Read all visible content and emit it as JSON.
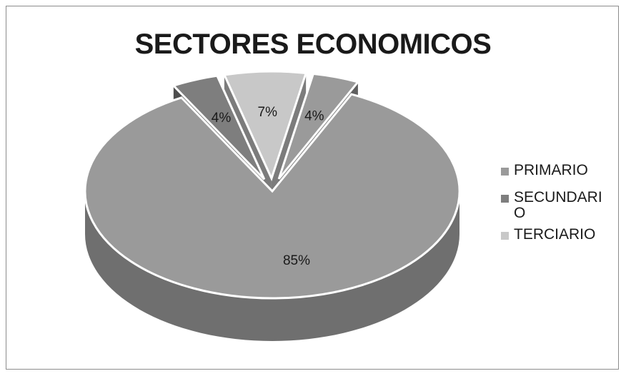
{
  "chart_data": {
    "type": "pie",
    "title": "SECTORES ECONOMICOS",
    "categories": [
      "PRIMARIO",
      "SECUNDARIO",
      "TERCIARIO",
      ""
    ],
    "values": [
      85,
      4,
      7,
      4
    ],
    "data_labels": [
      "85%",
      "4%",
      "7%",
      "4%"
    ],
    "colors": [
      "#9a9a9a",
      "#7e7e7e",
      "#c8c8c8",
      "#9a9a9a"
    ],
    "legend": {
      "placement": "right",
      "entries": [
        "PRIMARIO",
        "SECUNDARIO",
        "TERCIARIO"
      ]
    },
    "style": "3d-exploded"
  }
}
